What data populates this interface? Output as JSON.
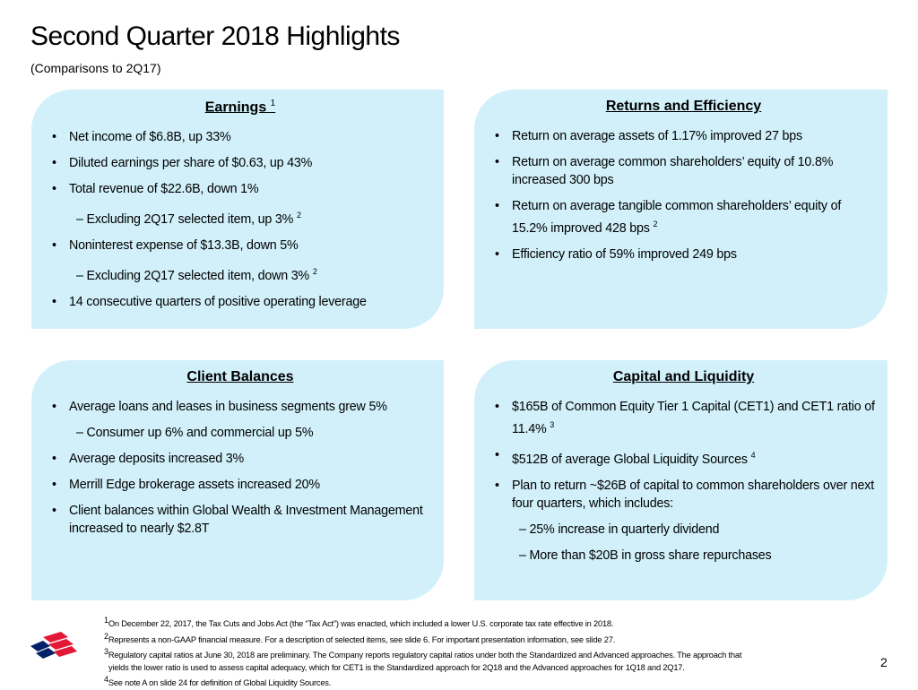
{
  "title": "Second Quarter 2018 Highlights",
  "subtitle": "(Comparisons to 2Q17)",
  "panels": {
    "earnings": {
      "heading": "Earnings",
      "note": "1",
      "items": [
        {
          "t": "Net income of $6.8B, up 33%"
        },
        {
          "t": "Diluted earnings per share of $0.63, up 43%"
        },
        {
          "t": "Total revenue of $22.6B, down 1%"
        },
        {
          "t": "Excluding 2Q17 selected item, up 3%",
          "sub": true,
          "note": "2"
        },
        {
          "t": "Noninterest expense of $13.3B, down 5%"
        },
        {
          "t": "Excluding 2Q17 selected item, down 3%",
          "sub": true,
          "note": "2"
        },
        {
          "t": "14 consecutive quarters of positive operating leverage"
        }
      ]
    },
    "returns": {
      "heading": "Returns and Efficiency",
      "items": [
        {
          "t": "Return on average assets of 1.17% improved 27 bps"
        },
        {
          "t": "Return on average common shareholders’ equity of 10.8% increased 300 bps"
        },
        {
          "t": "Return on average tangible common shareholders’ equity of 15.2% improved 428 bps",
          "note": "2"
        },
        {
          "t": "Efficiency ratio of 59% improved 249 bps"
        }
      ]
    },
    "client": {
      "heading": "Client Balances",
      "items": [
        {
          "t": "Average loans and leases in business segments grew 5%"
        },
        {
          "t": "Consumer up 6% and commercial up 5%",
          "sub": true
        },
        {
          "t": "Average deposits increased 3%"
        },
        {
          "t": "Merrill Edge brokerage assets increased 20%"
        },
        {
          "t": "Client balances within Global Wealth & Investment Management increased to nearly $2.8T"
        }
      ]
    },
    "capital": {
      "heading": "Capital and Liquidity",
      "items": [
        {
          "t": "$165B of Common Equity Tier 1 Capital (CET1) and CET1 ratio of 11.4%",
          "note": "3"
        },
        {
          "t": "$512B of average Global Liquidity Sources",
          "note": "4"
        },
        {
          "t": "Plan to return ~$26B of capital to common shareholders over next four quarters, which includes:"
        },
        {
          "t": "25% increase in quarterly dividend",
          "sub": true
        },
        {
          "t": "More than $20B in gross share repurchases",
          "sub": true
        }
      ]
    }
  },
  "footnotes": [
    {
      "n": "1",
      "t": "On December 22, 2017, the Tax Cuts and Jobs Act (the “Tax Act”) was enacted, which included a lower U.S. corporate tax rate effective in 2018."
    },
    {
      "n": "2",
      "t": "Represents a non-GAAP financial measure. For a description of selected items, see slide 6. For important presentation information, see slide 27."
    },
    {
      "n": "3",
      "t": "Regulatory capital ratios at June 30, 2018 are preliminary. The Company reports regulatory capital ratios under both the Standardized and Advanced approaches. The approach that",
      "c": "yields the lower ratio is used to assess capital adequacy, which for CET1 is the Standardized approach for 2Q18 and the Advanced approaches for 1Q18 and 2Q17."
    },
    {
      "n": "4",
      "t": "See note A on slide 24 for definition of Global Liquidity Sources."
    }
  ],
  "page_number": "2",
  "colors": {
    "panel": "#d1f0fa",
    "logo_red": "#e31837",
    "logo_blue": "#012169"
  }
}
